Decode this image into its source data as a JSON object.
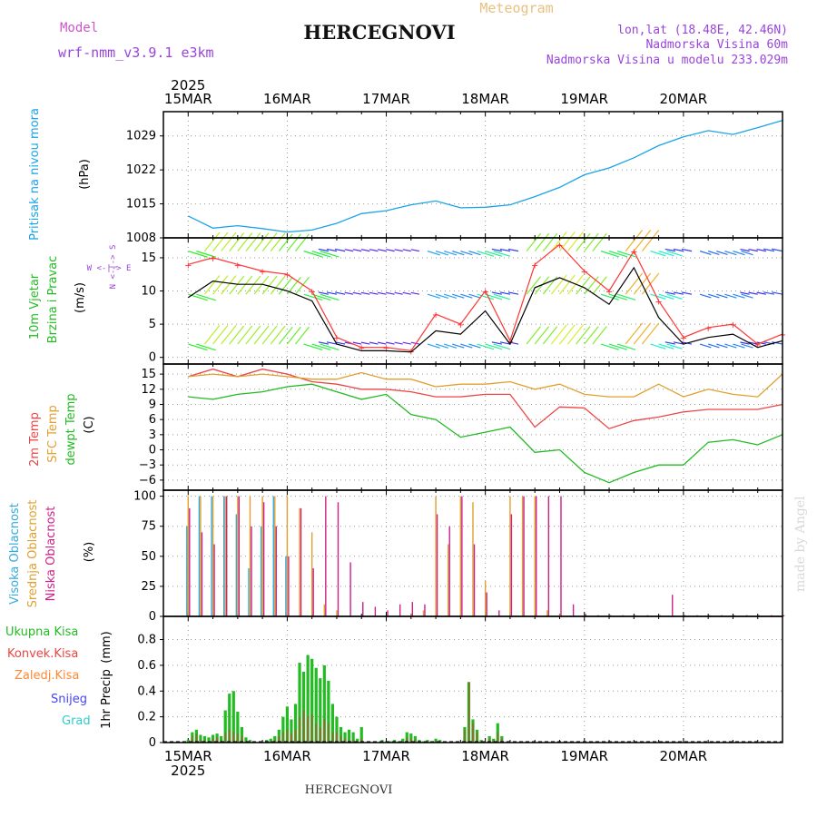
{
  "header": {
    "model_label": "Model",
    "model_name": "wrf-nmm_v3.9.1 e3km",
    "title": "HERCEGNOVI",
    "subtitle": "Meteogram",
    "coords": "lon,lat (18.48E, 42.46N)",
    "elevation": "Nadmorska Visina 60m",
    "model_elevation": "Nadmorska Visina u modelu 233.029m"
  },
  "footer": {
    "station": "HERCEGNOVI",
    "credit": "made by Angel"
  },
  "colors": {
    "pressure": "#1aa3e8",
    "wind_label": "#22bb22",
    "wind_speed": "#000000",
    "wind_gust": "#ff3333",
    "temp2m": "#ee4444",
    "sfc_temp": "#e0a030",
    "dewpt": "#22bb22",
    "high_cloud": "#33aadd",
    "mid_cloud": "#e0a030",
    "low_cloud": "#cc2288",
    "precip_total": "#22bb22",
    "precip_conv": "#ee4444",
    "precip_frozen": "#ff8833",
    "precip_snow": "#4444ff",
    "precip_hail": "#33cccc"
  },
  "chart_data": [
    {
      "type": "line",
      "panel": "pressure",
      "title": "Pritisak na nivou mora",
      "ylabel": "(hPa)",
      "ylim": [
        1008,
        1034
      ],
      "yticks": [
        1008,
        1015,
        1022,
        1029
      ],
      "x_day_labels": [
        "15MAR",
        "16MAR",
        "17MAR",
        "18MAR",
        "19MAR",
        "20MAR"
      ],
      "x_year_label": "2025",
      "x_hours": [
        0,
        6,
        12,
        18,
        24,
        30,
        36,
        42,
        48,
        54,
        60,
        66,
        72,
        78,
        84,
        90,
        96,
        102,
        108,
        114,
        120,
        126,
        132,
        138,
        144
      ],
      "series": [
        {
          "name": "MSLP",
          "values": [
            1012.5,
            1010,
            1010.5,
            1009.9,
            1009.2,
            1009.6,
            1011,
            1013,
            1013.6,
            1014.8,
            1015.6,
            1014.2,
            1014.3,
            1014.8,
            1016.5,
            1018.4,
            1021,
            1022.4,
            1024.5,
            1027,
            1028.8,
            1030.1,
            1029.3,
            1030.7,
            1032.2
          ]
        }
      ]
    },
    {
      "type": "line",
      "panel": "wind",
      "title": "10m Vjetar",
      "title2": "Brzina i Pravac",
      "ylabel": "(m/s)",
      "compass_label": "W <-|-> E",
      "compass_sn": "N <-|-> S",
      "ylim": [
        -1,
        18
      ],
      "yticks": [
        0,
        5,
        10,
        15
      ],
      "x_hours": [
        0,
        6,
        12,
        18,
        24,
        30,
        36,
        42,
        48,
        54,
        60,
        66,
        72,
        78,
        84,
        90,
        96,
        102,
        108,
        114,
        120,
        126,
        132,
        138,
        144
      ],
      "series": [
        {
          "name": "speed",
          "values": [
            9,
            11.5,
            11,
            11,
            10,
            8.5,
            2,
            1,
            1,
            0.8,
            4,
            3.5,
            7,
            2,
            10.5,
            12,
            10.5,
            8,
            13.5,
            6,
            2,
            3,
            3.5,
            1.5,
            2.5
          ]
        },
        {
          "name": "gust",
          "values": [
            14,
            15,
            14,
            13,
            12.5,
            10,
            3,
            1.5,
            1.5,
            1,
            6.5,
            5,
            10,
            2.5,
            14,
            17,
            13,
            10,
            16,
            8.5,
            3,
            4.5,
            5,
            2,
            3.5
          ]
        }
      ],
      "arrow_rows": [
        16,
        9.5,
        2
      ]
    },
    {
      "type": "line",
      "panel": "temperature",
      "title": "2m Temp",
      "title2": "SFC Temp",
      "title3": "dewpt Temp",
      "ylabel": "(C)",
      "ylim": [
        -8,
        17
      ],
      "yticks": [
        -6,
        -3,
        0,
        3,
        6,
        9,
        12,
        15
      ],
      "x_hours": [
        0,
        6,
        12,
        18,
        24,
        30,
        36,
        42,
        48,
        54,
        60,
        66,
        72,
        78,
        84,
        90,
        96,
        102,
        108,
        114,
        120,
        126,
        132,
        138,
        144
      ],
      "series": [
        {
          "name": "2m Temp",
          "values": [
            14.5,
            16,
            14.5,
            16,
            15,
            13.5,
            13,
            12,
            12,
            11.5,
            10.5,
            10.5,
            11,
            11,
            4.5,
            8.5,
            8.3,
            4.2,
            5.8,
            6.5,
            7.5,
            8,
            8,
            8,
            9
          ]
        },
        {
          "name": "SFC Temp",
          "values": [
            14.5,
            15,
            14.5,
            15,
            14.5,
            14,
            14,
            15.3,
            14,
            14,
            12.5,
            13,
            13,
            13.5,
            12,
            13,
            11,
            10.5,
            10.5,
            13,
            10.5,
            12,
            11,
            10.5,
            15
          ]
        },
        {
          "name": "dewpt Temp",
          "values": [
            10.5,
            10,
            11,
            11.5,
            12.5,
            13,
            11.5,
            10,
            11,
            7,
            6,
            2.5,
            3.5,
            4.5,
            -0.5,
            0,
            -4.5,
            -6.5,
            -4.5,
            -3,
            -3,
            1.5,
            2,
            1,
            3
          ]
        }
      ]
    },
    {
      "type": "bar",
      "panel": "clouds",
      "title": "Visoka Oblacnost",
      "title2": "Srednja Oblacnost",
      "title3": "Niska Oblacnost",
      "ylabel": "(%)",
      "ylim": [
        0,
        105
      ],
      "yticks": [
        0,
        25,
        50,
        75,
        100
      ],
      "x_hours": [
        0,
        3,
        6,
        9,
        12,
        15,
        18,
        21,
        24,
        27,
        30,
        33,
        36,
        39,
        42,
        45,
        48,
        51,
        54,
        57,
        60,
        63,
        66,
        69,
        72,
        75,
        78,
        81,
        84,
        87,
        90,
        93,
        96,
        99,
        102,
        105,
        108,
        111,
        114,
        117,
        120,
        123,
        126,
        129,
        132,
        135,
        138,
        141,
        144
      ],
      "series": [
        {
          "name": "Visoka",
          "values": [
            75,
            100,
            100,
            100,
            85,
            40,
            75,
            100,
            50,
            0,
            0,
            0,
            0,
            0,
            0,
            0,
            0,
            0,
            0,
            0,
            0,
            0,
            0,
            0,
            0,
            0,
            0,
            0,
            0,
            0,
            0,
            0,
            0,
            0,
            0,
            0,
            0,
            0,
            0,
            0,
            0,
            0,
            0,
            0,
            0,
            0,
            0,
            0,
            0
          ]
        },
        {
          "name": "Srednja",
          "values": [
            100,
            100,
            100,
            100,
            100,
            100,
            100,
            100,
            100,
            90,
            70,
            10,
            5,
            0,
            0,
            0,
            0,
            0,
            2,
            5,
            100,
            60,
            100,
            95,
            30,
            0,
            100,
            100,
            100,
            5,
            2,
            0,
            0,
            0,
            0,
            0,
            0,
            0,
            0,
            0,
            0,
            0,
            0,
            0,
            0,
            0,
            0,
            0,
            0
          ]
        },
        {
          "name": "Niska",
          "values": [
            90,
            70,
            60,
            100,
            100,
            75,
            95,
            75,
            50,
            90,
            40,
            100,
            95,
            45,
            12,
            8,
            5,
            10,
            12,
            10,
            85,
            75,
            100,
            60,
            20,
            5,
            85,
            100,
            100,
            100,
            100,
            10,
            2,
            1,
            1,
            1,
            1,
            1,
            1,
            18,
            1,
            1,
            1,
            1,
            1,
            1,
            1,
            1,
            1
          ]
        }
      ]
    },
    {
      "type": "bar",
      "panel": "precipitation",
      "title": "1hr Precip",
      "ylabel": "(mm)",
      "legend": [
        "Ukupna Kisa",
        "Konvek.Kisa",
        "Zaledj.Kisa",
        "Snijeg",
        "Grad"
      ],
      "ylim": [
        0,
        0.98
      ],
      "yticks": [
        0,
        0.2,
        0.4,
        0.6,
        0.8
      ],
      "x_day_labels": [
        "15MAR",
        "16MAR",
        "17MAR",
        "18MAR",
        "19MAR",
        "20MAR"
      ],
      "x_year_label": "2025",
      "x_hours": [
        0,
        1,
        2,
        3,
        4,
        5,
        6,
        7,
        8,
        9,
        10,
        11,
        12,
        13,
        14,
        15,
        16,
        17,
        18,
        19,
        20,
        21,
        22,
        23,
        24,
        25,
        26,
        27,
        28,
        29,
        30,
        31,
        32,
        33,
        34,
        35,
        36,
        37,
        38,
        39,
        40,
        41,
        42,
        43,
        44,
        45,
        46,
        47,
        48,
        49,
        50,
        51,
        52,
        53,
        54,
        55,
        56,
        57,
        58,
        59,
        60,
        61,
        62,
        63,
        64,
        65,
        66,
        67,
        68,
        69,
        70,
        71,
        72,
        73,
        74,
        75,
        76,
        77,
        78,
        79,
        80,
        81,
        82,
        83,
        84,
        85,
        86,
        87,
        88,
        89,
        90,
        91,
        92,
        93,
        94,
        95,
        96
      ],
      "series": [
        {
          "name": "Ukupna Kisa",
          "values": [
            0.02,
            0.08,
            0.1,
            0.06,
            0.05,
            0.04,
            0.06,
            0.07,
            0.05,
            0.25,
            0.38,
            0.4,
            0.24,
            0.12,
            0.04,
            0.02,
            0,
            0,
            0,
            0.02,
            0.03,
            0.05,
            0.1,
            0.2,
            0.28,
            0.18,
            0.3,
            0.62,
            0.55,
            0.68,
            0.65,
            0.58,
            0.5,
            0.6,
            0.48,
            0.3,
            0.2,
            0.12,
            0.08,
            0.1,
            0.08,
            0.03,
            0.12,
            0,
            0,
            0,
            0,
            0.02,
            0.01,
            0.01,
            0.02,
            0.01,
            0.03,
            0.08,
            0.07,
            0.05,
            0.02,
            0.01,
            0.02,
            0.01,
            0.03,
            0.02,
            0,
            0,
            0,
            0,
            0,
            0.12,
            0.47,
            0.18,
            0.1,
            0.02,
            0,
            0.05,
            0.03,
            0.15,
            0.05,
            0,
            0,
            0,
            0,
            0,
            0,
            0,
            0,
            0,
            0,
            0,
            0,
            0,
            0,
            0,
            0,
            0,
            0,
            0,
            0
          ]
        },
        {
          "name": "Konvek.Kisa",
          "values": [
            0,
            0.05,
            0.07,
            0.02,
            0.02,
            0.01,
            0.03,
            0.04,
            0.02,
            0.08,
            0.1,
            0.08,
            0.07,
            0.05,
            0.01,
            0,
            0,
            0,
            0,
            0.01,
            0.01,
            0.02,
            0.05,
            0.08,
            0.1,
            0.07,
            0.1,
            0.2,
            0.25,
            0.2,
            0.22,
            0.15,
            0.12,
            0.18,
            0.15,
            0.08,
            0.08,
            0.05,
            0.03,
            0.02,
            0.02,
            0.01,
            0.03,
            0,
            0,
            0,
            0,
            0.01,
            0,
            0,
            0.01,
            0,
            0.01,
            0.04,
            0.03,
            0.02,
            0.01,
            0,
            0.01,
            0,
            0.01,
            0.01,
            0,
            0,
            0,
            0,
            0,
            0.1,
            0.47,
            0.15,
            0.08,
            0.01,
            0,
            0.03,
            0.02,
            0.08,
            0.03,
            0,
            0,
            0,
            0,
            0,
            0,
            0,
            0,
            0,
            0,
            0,
            0,
            0,
            0,
            0,
            0,
            0,
            0,
            0,
            0
          ]
        }
      ]
    }
  ]
}
